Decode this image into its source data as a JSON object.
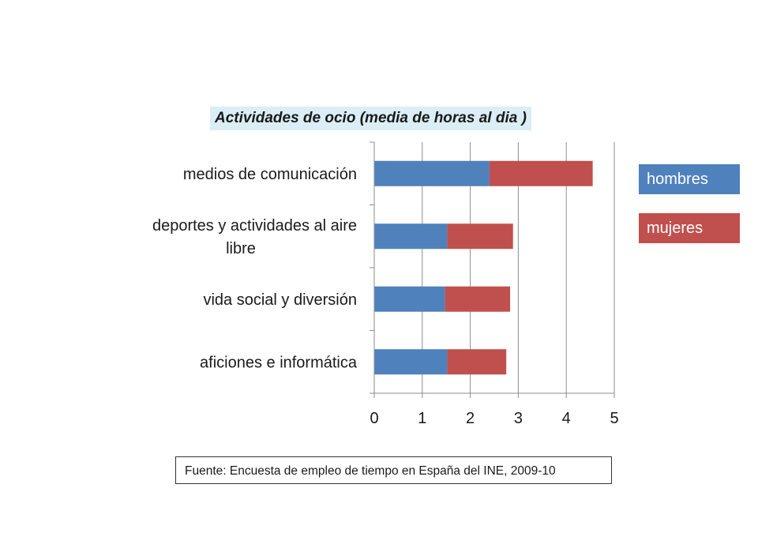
{
  "chart_data": {
    "type": "bar",
    "orientation": "horizontal",
    "stacked": true,
    "title": "Actividades de ocio (media de horas al dia )",
    "categories": [
      "medios de comunicación",
      "deportes y actividades al aire libre",
      "vida social y diversión",
      "aficiones e informática"
    ],
    "category_label_lines": [
      [
        "medios de comunicación"
      ],
      [
        "deportes y actividades al aire",
        "libre"
      ],
      [
        "vida social y diversión"
      ],
      [
        "aficiones e informática"
      ]
    ],
    "series": [
      {
        "name": "hombres",
        "color": "#4f81bd",
        "values": [
          2.4,
          1.52,
          1.47,
          1.52
        ]
      },
      {
        "name": "mujeres",
        "color": "#c0504d",
        "values": [
          2.15,
          1.37,
          1.36,
          1.23
        ]
      }
    ],
    "xlim": [
      0,
      5
    ],
    "xticks": [
      "0",
      "1",
      "2",
      "3",
      "4",
      "5"
    ],
    "grid": "vertical",
    "legend": "right"
  },
  "legend": {
    "hombres": "hombres",
    "mujeres": "mujeres"
  },
  "source_note": "Fuente: Encuesta de empleo de tiempo en España  del INE,  2009-10"
}
